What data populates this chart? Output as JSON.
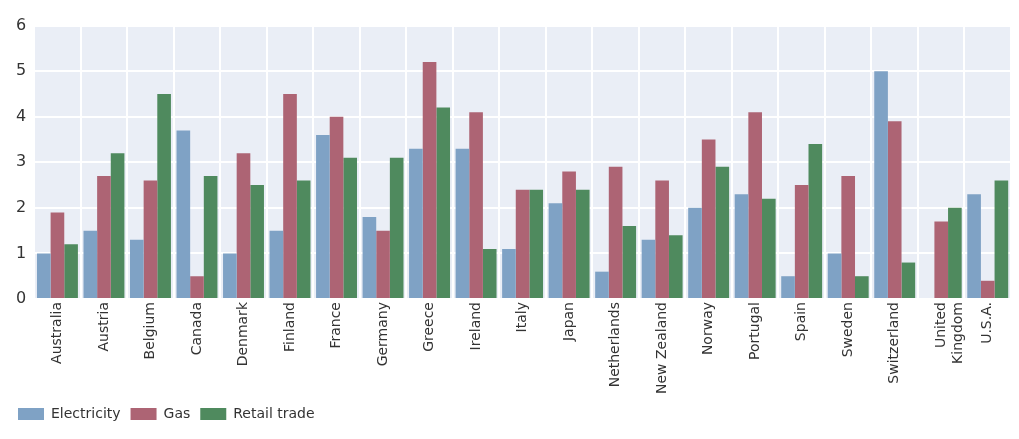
{
  "chart_data": {
    "type": "bar",
    "categories": [
      "Australia",
      "Austria",
      "Belgium",
      "Canada",
      "Denmark",
      "Finland",
      "France",
      "Germany",
      "Greece",
      "Ireland",
      "Italy",
      "Japan",
      "Netherlands",
      "New Zealand",
      "Norway",
      "Portugal",
      "Spain",
      "Sweden",
      "Switzerland",
      "United Kingdom",
      "U.S.A."
    ],
    "series": [
      {
        "name": "Electricity",
        "color": "#7fa2c5",
        "values": [
          1.0,
          1.5,
          1.3,
          3.7,
          1.0,
          1.5,
          3.6,
          1.8,
          3.3,
          3.3,
          1.1,
          2.1,
          0.6,
          1.3,
          2.0,
          2.3,
          0.5,
          1.0,
          5.0,
          null,
          2.3
        ]
      },
      {
        "name": "Gas",
        "color": "#ad6474",
        "values": [
          1.9,
          2.7,
          2.6,
          0.5,
          3.2,
          4.5,
          4.0,
          1.5,
          5.2,
          4.1,
          2.4,
          2.8,
          2.9,
          2.6,
          3.5,
          4.1,
          2.5,
          2.7,
          3.9,
          1.7,
          0.4
        ]
      },
      {
        "name": "Retail trade",
        "color": "#4f8a5e",
        "values": [
          1.2,
          3.2,
          4.5,
          2.7,
          2.5,
          2.6,
          3.1,
          3.1,
          4.2,
          1.1,
          2.4,
          2.4,
          1.6,
          1.4,
          2.9,
          2.2,
          3.4,
          0.5,
          0.8,
          2.0,
          2.6
        ]
      }
    ],
    "ylim": [
      0,
      6
    ],
    "yticks": [
      0,
      1,
      2,
      3,
      4,
      5,
      6
    ],
    "grid": true,
    "legend": "bottom left"
  }
}
